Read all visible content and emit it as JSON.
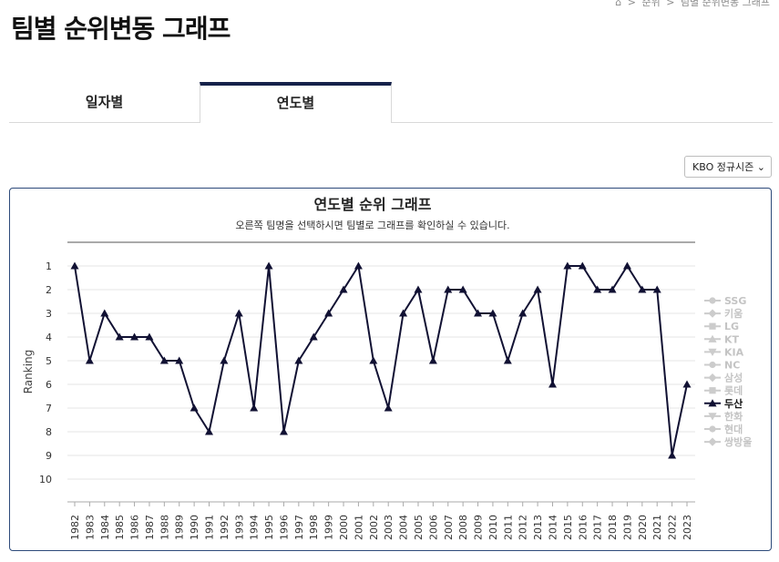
{
  "breadcrumb": {
    "items": [
      "순위",
      "팀별 순위변동 그래프"
    ]
  },
  "page_title": "팀별 순위변동 그래프",
  "tabs": [
    {
      "label": "일자별"
    },
    {
      "label": "연도별"
    }
  ],
  "season_select": {
    "value": "KBO 정규시즌"
  },
  "chart_data": {
    "type": "line",
    "title": "연도별 순위 그래프",
    "subtitle": "오른쪽 팀명을 선택하시면 팀별로 그래프를 확인하실 수 있습니다.",
    "ylabel": "Ranking",
    "xlabel": "",
    "ylim": [
      1,
      10
    ],
    "y_inverted": true,
    "grid": true,
    "legend_position": "right",
    "x": [
      "1982",
      "1983",
      "1984",
      "1985",
      "1986",
      "1987",
      "1988",
      "1989",
      "1990",
      "1991",
      "1992",
      "1993",
      "1994",
      "1995",
      "1996",
      "1997",
      "1998",
      "1999",
      "2000",
      "2001",
      "2002",
      "2003",
      "2004",
      "2005",
      "2006",
      "2007",
      "2008",
      "2009",
      "2010",
      "2011",
      "2012",
      "2013",
      "2014",
      "2015",
      "2016",
      "2017",
      "2018",
      "2019",
      "2020",
      "2021",
      "2022",
      "2023"
    ],
    "y_ticks": [
      1,
      2,
      3,
      4,
      5,
      6,
      7,
      8,
      9,
      10
    ],
    "series": [
      {
        "name": "두산",
        "active": true,
        "color": "#111133",
        "values": [
          1,
          5,
          3,
          4,
          4,
          4,
          5,
          5,
          7,
          8,
          5,
          3,
          7,
          1,
          8,
          5,
          4,
          3,
          2,
          1,
          5,
          7,
          3,
          2,
          5,
          2,
          2,
          3,
          3,
          5,
          3,
          2,
          6,
          1,
          1,
          2,
          2,
          1,
          2,
          2,
          9,
          6
        ]
      }
    ],
    "legend": [
      {
        "name": "SSG",
        "marker": "circle",
        "active": false
      },
      {
        "name": "키움",
        "marker": "diamond",
        "active": false
      },
      {
        "name": "LG",
        "marker": "square",
        "active": false
      },
      {
        "name": "KT",
        "marker": "triangle",
        "active": false
      },
      {
        "name": "KIA",
        "marker": "triangle-down",
        "active": false
      },
      {
        "name": "NC",
        "marker": "circle",
        "active": false
      },
      {
        "name": "삼성",
        "marker": "diamond",
        "active": false
      },
      {
        "name": "롯데",
        "marker": "square",
        "active": false
      },
      {
        "name": "두산",
        "marker": "triangle",
        "active": true
      },
      {
        "name": "한화",
        "marker": "triangle-down",
        "active": false
      },
      {
        "name": "현대",
        "marker": "circle",
        "active": false
      },
      {
        "name": "쌍방울",
        "marker": "diamond",
        "active": false
      }
    ],
    "colors": {
      "active": "#111133",
      "inactive": "#cccccc",
      "grid": "#e6e6e6"
    }
  }
}
